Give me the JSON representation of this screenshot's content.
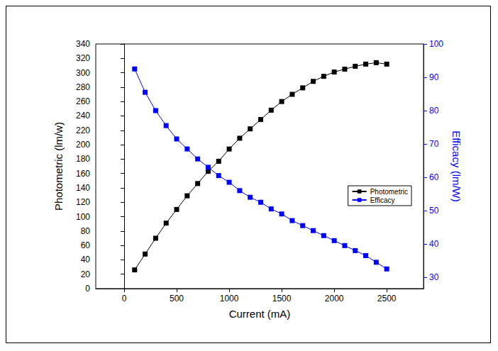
{
  "chart_data": {
    "type": "line",
    "x_label": "Current (mA)",
    "y_label": "Photometric (lm/w)",
    "y2_label": "Efficacy (lm/W)",
    "x": [
      100,
      200,
      300,
      400,
      500,
      600,
      700,
      800,
      900,
      1000,
      1100,
      1200,
      1300,
      1400,
      1500,
      1600,
      1700,
      1800,
      1900,
      2000,
      2100,
      2200,
      2300,
      2400,
      2500
    ],
    "series": [
      {
        "name": "Photometric",
        "color": "#000000",
        "marker": "square",
        "line_style": "solid",
        "values": [
          26,
          48,
          70,
          91,
          110,
          129,
          146,
          163,
          177,
          194,
          209,
          222,
          235,
          248,
          260,
          270,
          279,
          288,
          295,
          301,
          305,
          309,
          312,
          314,
          312
        ]
      },
      {
        "name": "Efficacy",
        "color": "#0000ff",
        "marker": "square",
        "line_style": "solid",
        "axis": "y2",
        "values": [
          92.5,
          85.5,
          80,
          75.5,
          71.5,
          68.5,
          65.5,
          63,
          60.5,
          58.5,
          56,
          54,
          52.5,
          50.5,
          49,
          47,
          45.5,
          44,
          42.5,
          41,
          39.5,
          38,
          36.5,
          34.5,
          32.5
        ]
      }
    ],
    "xlim": [
      -270,
      2850
    ],
    "xticks": [
      0,
      500,
      1000,
      1500,
      2000,
      2500
    ],
    "ylim": [
      0,
      340
    ],
    "yticks": [
      0,
      20,
      40,
      60,
      80,
      100,
      120,
      140,
      160,
      180,
      200,
      220,
      240,
      260,
      280,
      300,
      320,
      340
    ],
    "y2lim": [
      26.6,
      100
    ],
    "y2ticks": [
      30,
      40,
      50,
      60,
      70,
      80,
      90,
      100
    ],
    "legend": "right",
    "grid": false
  }
}
